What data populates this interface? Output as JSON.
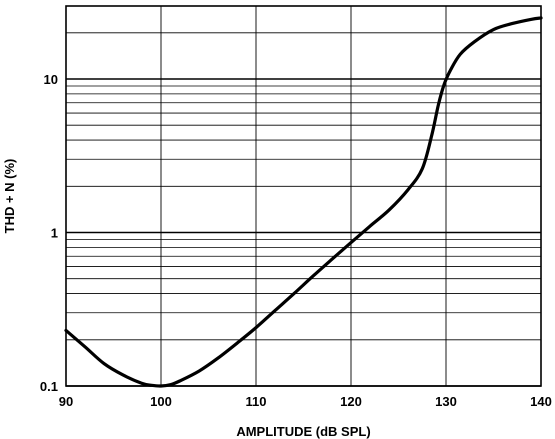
{
  "chart_data": {
    "type": "line",
    "xlabel": "AMPLITUDE (dB SPL)",
    "ylabel": "THD + N (%)",
    "xlim": [
      90,
      140
    ],
    "ylim": [
      0.1,
      30
    ],
    "y_scale": "log",
    "grid": true,
    "x_ticks": [
      90,
      100,
      110,
      120,
      130,
      140
    ],
    "x_tick_labels": [
      "90",
      "100",
      "110",
      "120",
      "130",
      "140"
    ],
    "y_ticks": [
      0.1,
      1,
      10
    ],
    "y_tick_labels": [
      "0.1",
      "1",
      "10"
    ],
    "series": [
      {
        "x": [
          90,
          92,
          94,
          96,
          98,
          99,
          100,
          101,
          102,
          104,
          106,
          108,
          110,
          112,
          114,
          116,
          118,
          120,
          122,
          124,
          126,
          127.5,
          128.5,
          129.2,
          129.8,
          130.5,
          131.5,
          133,
          135,
          137,
          139,
          140
        ],
        "y": [
          0.23,
          0.18,
          0.14,
          0.118,
          0.104,
          0.101,
          0.1,
          0.102,
          0.108,
          0.125,
          0.152,
          0.19,
          0.24,
          0.31,
          0.4,
          0.52,
          0.67,
          0.86,
          1.1,
          1.4,
          1.9,
          2.6,
          4.3,
          6.8,
          9.2,
          11.5,
          14.5,
          17.5,
          21,
          23,
          24.5,
          25
        ]
      }
    ]
  }
}
